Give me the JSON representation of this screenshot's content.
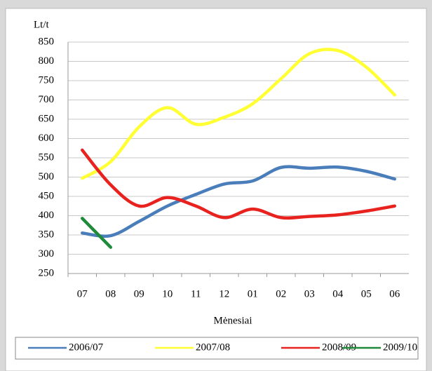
{
  "chart_data": {
    "type": "line",
    "y_label": "Lt/t",
    "x_label": "Mėnesiai",
    "categories": [
      "07",
      "08",
      "09",
      "10",
      "11",
      "12",
      "01",
      "02",
      "03",
      "04",
      "05",
      "06"
    ],
    "series": [
      {
        "name": "2006/07",
        "color": "#4a7ebb",
        "values": [
          355,
          348,
          385,
          425,
          455,
          482,
          490,
          525,
          523,
          526,
          515,
          495
        ]
      },
      {
        "name": "2007/08",
        "color": "#ffff33",
        "values": [
          497,
          540,
          630,
          680,
          637,
          655,
          690,
          755,
          820,
          828,
          785,
          713
        ]
      },
      {
        "name": "2008/09",
        "color": "#e8231f",
        "values": [
          570,
          480,
          425,
          447,
          425,
          395,
          417,
          395,
          398,
          402,
          412,
          425
        ]
      },
      {
        "name": "2009/10",
        "color": "#1f8a3a",
        "values": [
          393,
          318,
          null,
          null,
          null,
          null,
          null,
          null,
          null,
          null,
          null,
          null
        ]
      }
    ],
    "ylim": [
      250,
      850
    ],
    "yticks": [
      250,
      300,
      350,
      400,
      450,
      500,
      550,
      600,
      650,
      700,
      750,
      800,
      850
    ],
    "grid": true,
    "legend": "bottom"
  }
}
